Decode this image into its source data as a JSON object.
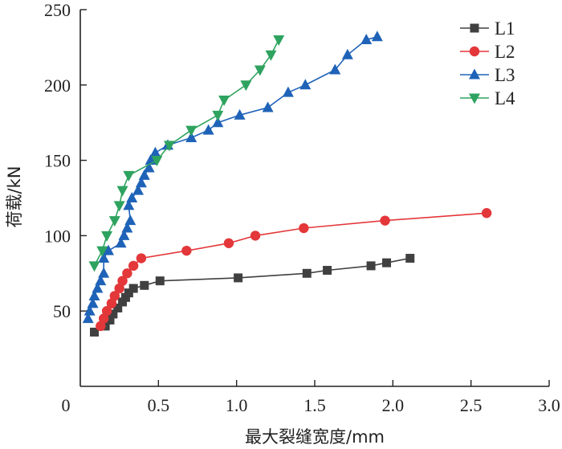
{
  "chart_data": {
    "type": "line",
    "title": "",
    "xlabel": "最大裂缝宽度/mm",
    "ylabel": "荷载/kN",
    "xlim": [
      0,
      3.0
    ],
    "ylim": [
      0,
      250
    ],
    "xticks": [
      "0",
      "0.5",
      "1.0",
      "1.5",
      "2.0",
      "2.5",
      "3.0"
    ],
    "xtick_values": [
      0,
      0.5,
      1.0,
      1.5,
      2.0,
      2.5,
      3.0
    ],
    "yticks": [
      "50",
      "100",
      "150",
      "200",
      "250"
    ],
    "ytick_values": [
      50,
      100,
      150,
      200,
      250
    ],
    "origin_label": "0",
    "grid": false,
    "legend_position": "top-right",
    "series": [
      {
        "name": "L1",
        "color": "#404040",
        "marker": "square",
        "dash": "solid",
        "x": [
          0.09,
          0.16,
          0.19,
          0.21,
          0.24,
          0.27,
          0.29,
          0.31,
          0.34,
          0.41,
          0.51,
          1.01,
          1.45,
          1.58,
          1.86,
          1.96,
          2.11
        ],
        "y": [
          36,
          40,
          44,
          48,
          52,
          56,
          59,
          62,
          65,
          67,
          70,
          72,
          75,
          77,
          80,
          82,
          85
        ]
      },
      {
        "name": "L2",
        "color": "#e3373a",
        "marker": "circle",
        "dash": "solid",
        "x": [
          0.13,
          0.15,
          0.17,
          0.2,
          0.22,
          0.25,
          0.27,
          0.3,
          0.34,
          0.39,
          0.68,
          0.95,
          1.12,
          1.43,
          1.95,
          2.6
        ],
        "y": [
          40,
          45,
          50,
          55,
          60,
          65,
          70,
          75,
          80,
          85,
          90,
          95,
          100,
          105,
          110,
          115
        ]
      },
      {
        "name": "L3",
        "color": "#1f63b8",
        "marker": "triangle-up",
        "dash": "solid",
        "x": [
          0.05,
          0.06,
          0.08,
          0.09,
          0.11,
          0.13,
          0.15,
          0.15,
          0.18,
          0.26,
          0.28,
          0.3,
          0.32,
          0.31,
          0.33,
          0.37,
          0.39,
          0.41,
          0.44,
          0.45,
          0.48,
          0.56,
          0.71,
          0.82,
          0.88,
          1.02,
          1.2,
          1.33,
          1.44,
          1.63,
          1.71,
          1.83,
          1.9
        ],
        "y": [
          45,
          50,
          55,
          60,
          65,
          70,
          75,
          85,
          90,
          95,
          100,
          105,
          110,
          120,
          125,
          130,
          135,
          140,
          145,
          150,
          155,
          160,
          165,
          170,
          175,
          180,
          185,
          195,
          200,
          210,
          220,
          230,
          232
        ]
      },
      {
        "name": "L4",
        "color": "#2ea35f",
        "marker": "triangle-down",
        "dash": "solid",
        "x": [
          0.09,
          0.14,
          0.17,
          0.22,
          0.25,
          0.27,
          0.31,
          0.49,
          0.57,
          0.71,
          0.88,
          0.92,
          1.06,
          1.15,
          1.22,
          1.27
        ],
        "y": [
          80,
          90,
          100,
          110,
          120,
          130,
          140,
          150,
          160,
          170,
          180,
          190,
          200,
          210,
          220,
          230
        ]
      }
    ]
  }
}
